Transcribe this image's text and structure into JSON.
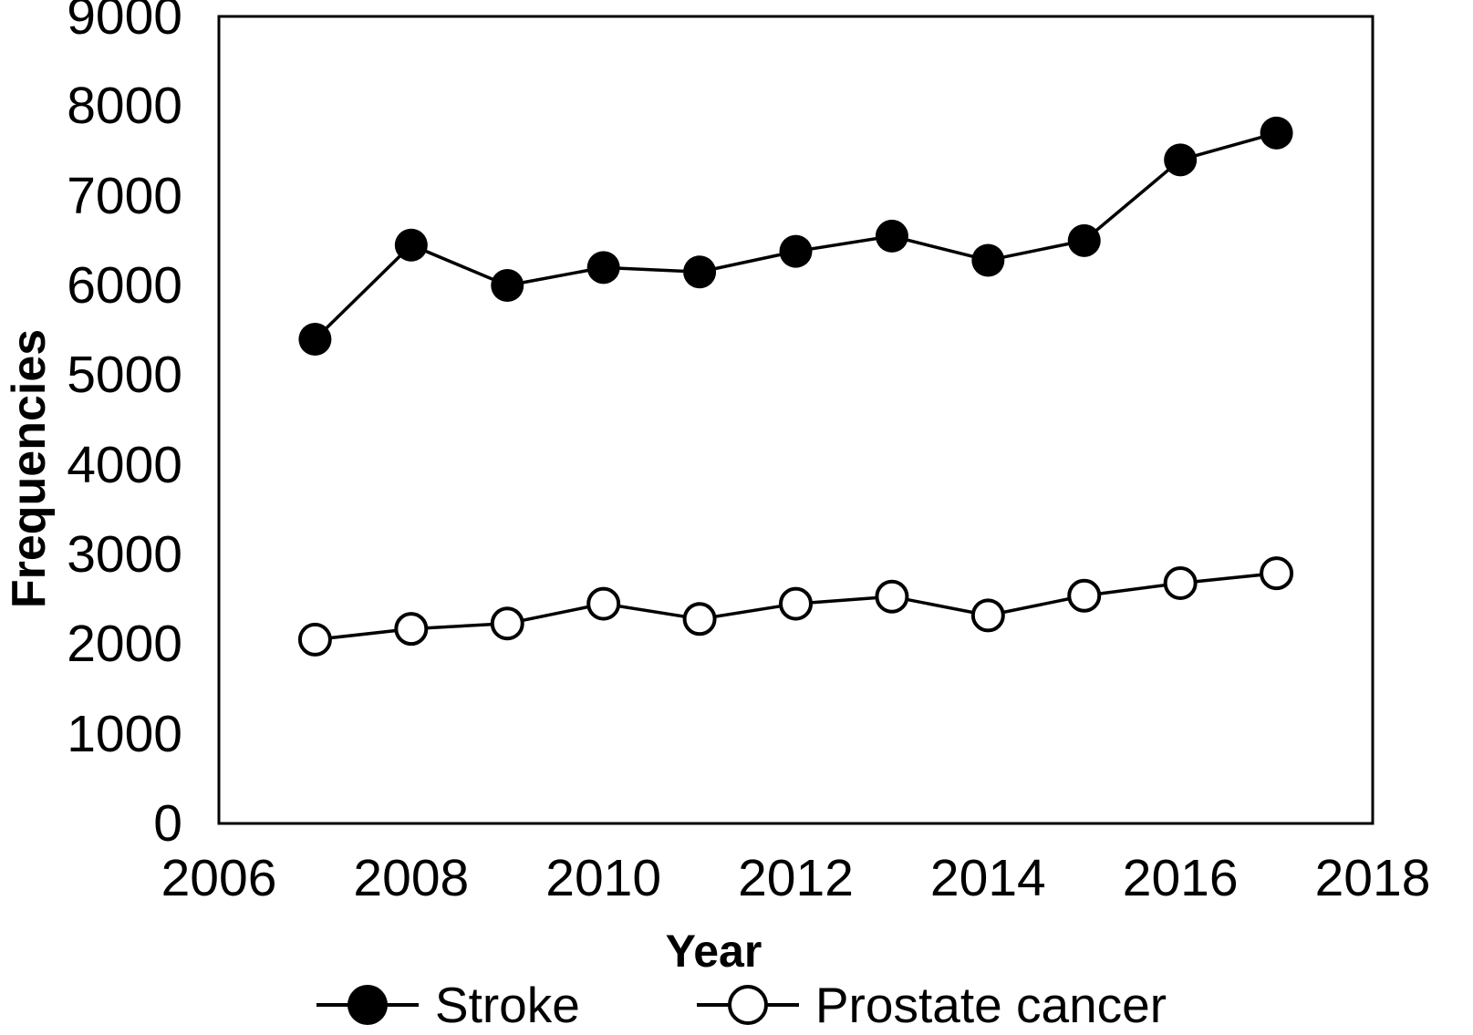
{
  "figure": {
    "background": "#ffffff",
    "foreground": "#000000"
  },
  "chart_data": {
    "type": "line",
    "title": "",
    "xlabel": "Year",
    "ylabel": "Frequencies",
    "x": [
      2007,
      2008,
      2009,
      2010,
      2011,
      2012,
      2013,
      2014,
      2015,
      2016,
      2017
    ],
    "series": [
      {
        "name": "Stroke",
        "marker": "filled-circle",
        "color": "#000000",
        "values": [
          5400,
          6450,
          6000,
          6200,
          6150,
          6380,
          6550,
          6280,
          6500,
          7400,
          7700
        ]
      },
      {
        "name": "Prostate cancer",
        "marker": "open-circle",
        "color": "#000000",
        "values": [
          2050,
          2170,
          2230,
          2450,
          2280,
          2450,
          2530,
          2320,
          2540,
          2680,
          2790
        ]
      }
    ],
    "xlim": [
      2006,
      2018
    ],
    "ylim": [
      0,
      9000
    ],
    "x_ticks": [
      2006,
      2008,
      2010,
      2012,
      2014,
      2016,
      2018
    ],
    "y_ticks": [
      0,
      1000,
      2000,
      3000,
      4000,
      5000,
      6000,
      7000,
      8000,
      9000
    ],
    "grid": false,
    "frame": true,
    "legend_position": "bottom-center"
  },
  "legend": {
    "items": [
      {
        "label": "Stroke",
        "marker": "filled-circle"
      },
      {
        "label": "Prostate cancer",
        "marker": "open-circle"
      }
    ]
  }
}
